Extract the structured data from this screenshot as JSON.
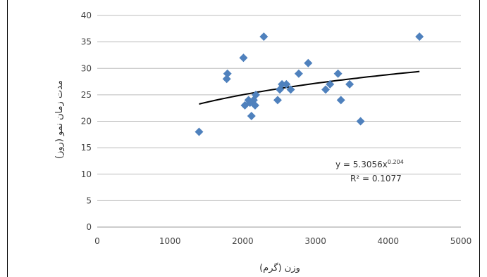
{
  "chart_data": {
    "type": "scatter",
    "title": "",
    "xlabel": "وزن (گرم)",
    "ylabel": "مدت زمان نمو (روز)",
    "xlim": [
      0,
      5000
    ],
    "ylim": [
      0,
      40
    ],
    "xticks": [
      0,
      1000,
      2000,
      3000,
      4000,
      5000
    ],
    "yticks": [
      0,
      5,
      10,
      15,
      20,
      25,
      30,
      35,
      40
    ],
    "grid": true,
    "legend": "none",
    "marker_color": "#4f81bd",
    "trendline_color": "#000000",
    "series": [
      {
        "points": [
          [
            1400,
            18
          ],
          [
            1780,
            28
          ],
          [
            1790,
            29
          ],
          [
            2010,
            32
          ],
          [
            2030,
            23
          ],
          [
            2080,
            24
          ],
          [
            2100,
            23.5
          ],
          [
            2120,
            21
          ],
          [
            2150,
            24
          ],
          [
            2170,
            23
          ],
          [
            2180,
            25
          ],
          [
            2290,
            36
          ],
          [
            2480,
            24
          ],
          [
            2510,
            26
          ],
          [
            2540,
            27
          ],
          [
            2600,
            27
          ],
          [
            2660,
            26
          ],
          [
            2770,
            29
          ],
          [
            2900,
            31
          ],
          [
            3140,
            26
          ],
          [
            3200,
            27
          ],
          [
            3310,
            29
          ],
          [
            3350,
            24
          ],
          [
            3470,
            27
          ],
          [
            3620,
            20
          ],
          [
            4430,
            36
          ]
        ]
      }
    ],
    "trendline": {
      "type": "power",
      "a": 5.3056,
      "b": 0.204,
      "x_range": [
        1400,
        4430
      ],
      "equation_prefix": "y = 5.3056x",
      "equation_exponent": "0.204",
      "r2_label": "R² = 0.1077"
    }
  }
}
